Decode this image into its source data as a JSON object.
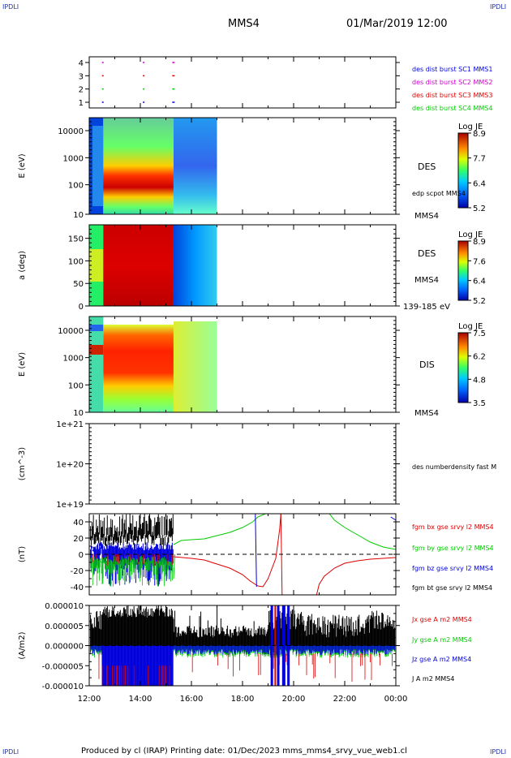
{
  "corner_label": "IPDLI",
  "header": {
    "spacecraft": "MMS4",
    "datetime": "01/Mar/2019 12:00"
  },
  "footer": {
    "text": "Produced by cl (IRAP)   Printing date: 01/Dec/2023   mms_mms4_srvy_vue_web1.cl"
  },
  "colors": {
    "black": "#000000",
    "red": "#dd0000",
    "green": "#00cc00",
    "blue": "#0000dd",
    "magenta": "#cc00cc"
  },
  "chart_data": [
    {
      "id": "burst",
      "type": "scatter",
      "ytick_labels": [
        "4",
        "3",
        "2",
        "1"
      ],
      "series": [
        {
          "name": "des dist burst SC1 MMS1",
          "color": "#0000dd",
          "y": 1
        },
        {
          "name": "des dist burst SC2 MMS2",
          "color": "#cc00cc",
          "y": 4
        },
        {
          "name": "des dist burst SC3 MMS3",
          "color": "#dd0000",
          "y": 3
        },
        {
          "name": "des dist burst SC4 MMS4",
          "color": "#00cc00",
          "y": 2
        }
      ],
      "marks_hours": [
        12.5,
        14.1,
        15.25
      ]
    },
    {
      "id": "des_energy",
      "type": "heatmap",
      "ylabel": "E (eV)",
      "yscale": "log",
      "ylim": [
        10,
        30000
      ],
      "ytick_labels": [
        "10000",
        "1000",
        "100",
        "10"
      ],
      "label": "DES",
      "sublabel": "edp scpot MMS4",
      "sc_label": "MMS4",
      "colorbar": {
        "title": "Log JE",
        "ticks": [
          "8.9",
          "7.7",
          "6.4",
          "5.2"
        ]
      },
      "data_hours": [
        12.0,
        17.0
      ]
    },
    {
      "id": "des_pitch",
      "type": "heatmap",
      "ylabel": "a (deg)",
      "ylim": [
        0,
        180
      ],
      "ytick_labels": [
        "150",
        "100",
        "50",
        "0"
      ],
      "label": "DES",
      "sc_label": "MMS4",
      "energy_range": "139-185 eV",
      "colorbar": {
        "title": "Log JE",
        "ticks": [
          "8.9",
          "7.6",
          "6.4",
          "5.2"
        ]
      },
      "data_hours": [
        12.0,
        17.0
      ]
    },
    {
      "id": "dis_energy",
      "type": "heatmap",
      "ylabel": "E (eV)",
      "yscale": "log",
      "ylim": [
        10,
        30000
      ],
      "ytick_labels": [
        "10000",
        "1000",
        "100",
        "10"
      ],
      "label": "DIS",
      "sc_label": "MMS4",
      "colorbar": {
        "title": "Log JE",
        "ticks": [
          "7.5",
          "6.2",
          "4.8",
          "3.5"
        ]
      },
      "data_hours": [
        12.0,
        17.0
      ]
    },
    {
      "id": "density",
      "type": "line",
      "ylabel": "(cm^-3)",
      "yscale": "log",
      "ytick_labels": [
        "1e+21",
        "1e+20",
        "1e+19"
      ],
      "series": [
        {
          "name": "des numberdensity fast M",
          "color": "#000000"
        }
      ]
    },
    {
      "id": "fgm",
      "type": "line",
      "ylabel": "(nT)",
      "ylim": [
        -50,
        50
      ],
      "ytick_labels": [
        "40",
        "20",
        "0",
        "-20",
        "-40"
      ],
      "series": [
        {
          "name": "fgm bx gse srvy l2 MMS4",
          "color": "#dd0000"
        },
        {
          "name": "fgm by gse srvy l2 MMS4",
          "color": "#00cc00"
        },
        {
          "name": "fgm bz gse srvy l2 MMS4",
          "color": "#0000dd"
        },
        {
          "name": "fgm bt gse srvy l2 MMS4",
          "color": "#000000"
        }
      ]
    },
    {
      "id": "current",
      "type": "line",
      "ylabel": "(A/m2)",
      "ylim": [
        -1e-05,
        1e-05
      ],
      "ytick_labels": [
        "0.000010",
        "0.000005",
        "0.000000",
        "-0.000005",
        "-0.000010"
      ],
      "series": [
        {
          "name": "Jx gse A m2 MMS4",
          "color": "#dd0000"
        },
        {
          "name": "Jy gse A m2 MMS4",
          "color": "#00cc00"
        },
        {
          "name": "Jz gse A m2 MMS4",
          "color": "#0000dd"
        },
        {
          "name": "J A m2 MMS4",
          "color": "#000000"
        }
      ]
    }
  ],
  "xaxis": {
    "ticks": [
      "12:00",
      "14:00",
      "16:00",
      "18:00",
      "20:00",
      "22:00",
      "00:00"
    ],
    "range_hours": [
      12,
      24
    ]
  }
}
